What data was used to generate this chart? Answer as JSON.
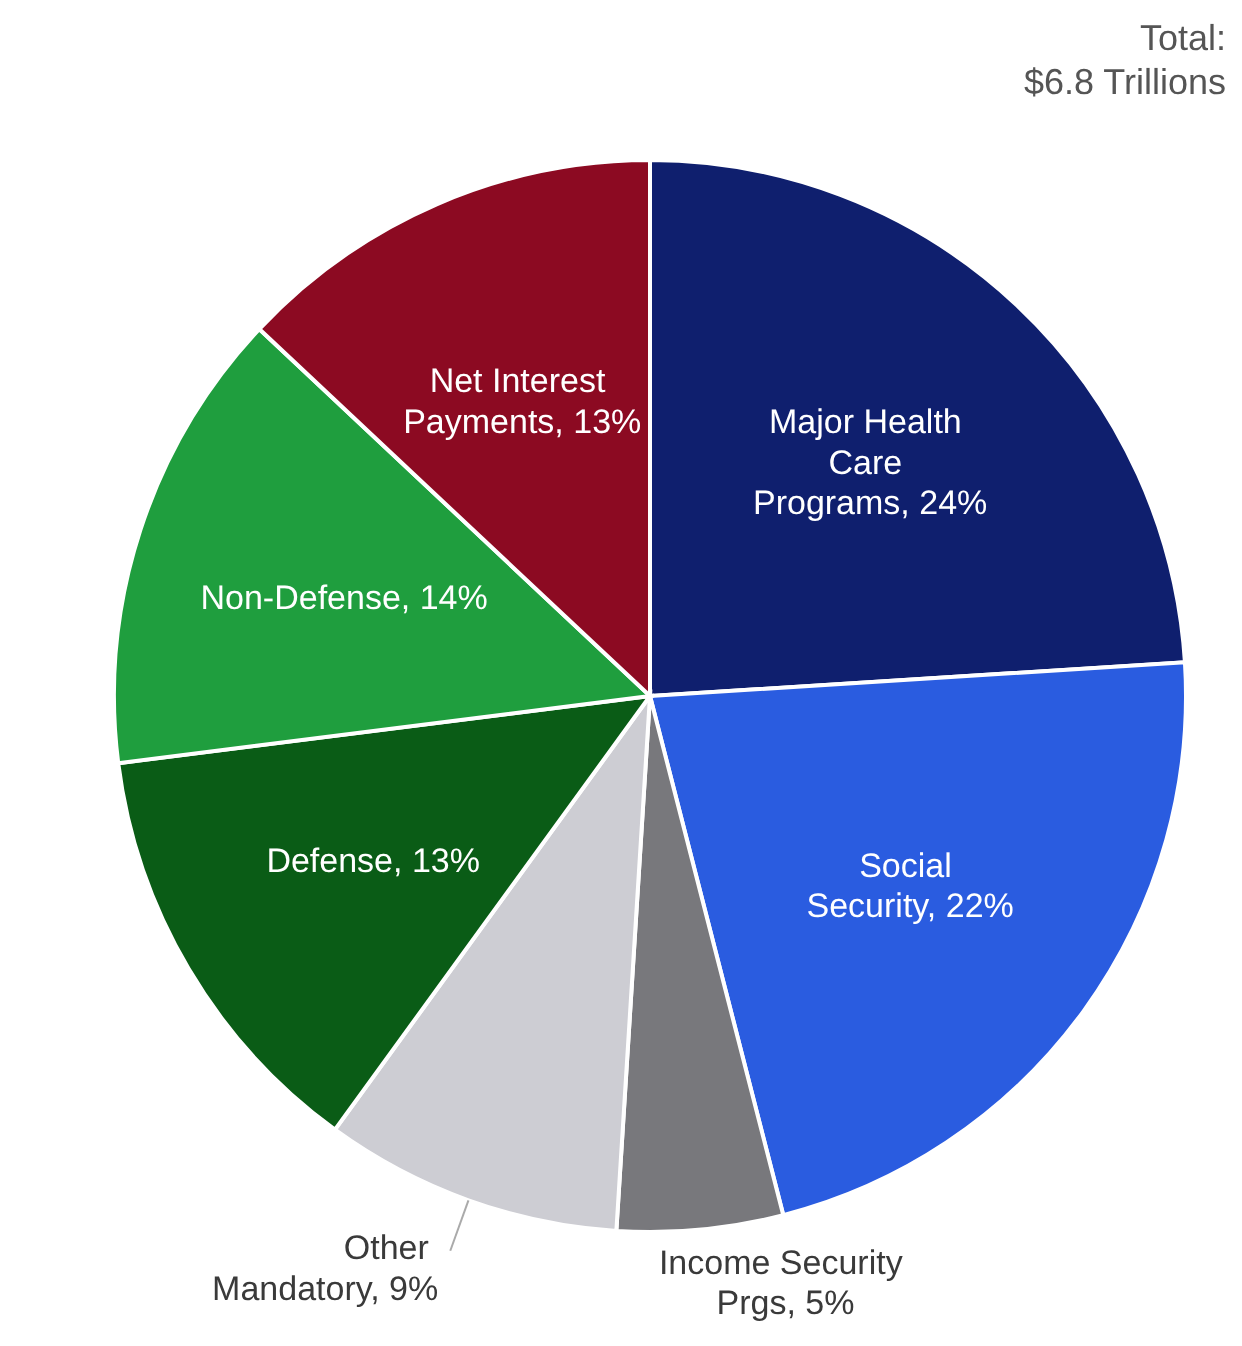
{
  "chart_data": {
    "type": "pie",
    "categories": [
      "Major Health Care Programs",
      "Social Security",
      "Income Security Prgs",
      "Other Mandatory",
      "Defense",
      "Non-Defense",
      "Net Interest Payments"
    ],
    "values": [
      24,
      22,
      5,
      9,
      13,
      14,
      13
    ],
    "value_labels": [
      "24%",
      "22%",
      "5%",
      "9%",
      "13%",
      "14%",
      "13%"
    ],
    "colors": [
      "#0f1f6e",
      "#2a5ce0",
      "#78787c",
      "#cdcdd3",
      "#0a5c16",
      "#1f9e3e",
      "#8c0a22"
    ],
    "data_labels": true,
    "annotations": [
      "Total:",
      "$6.8 Trillions"
    ]
  }
}
